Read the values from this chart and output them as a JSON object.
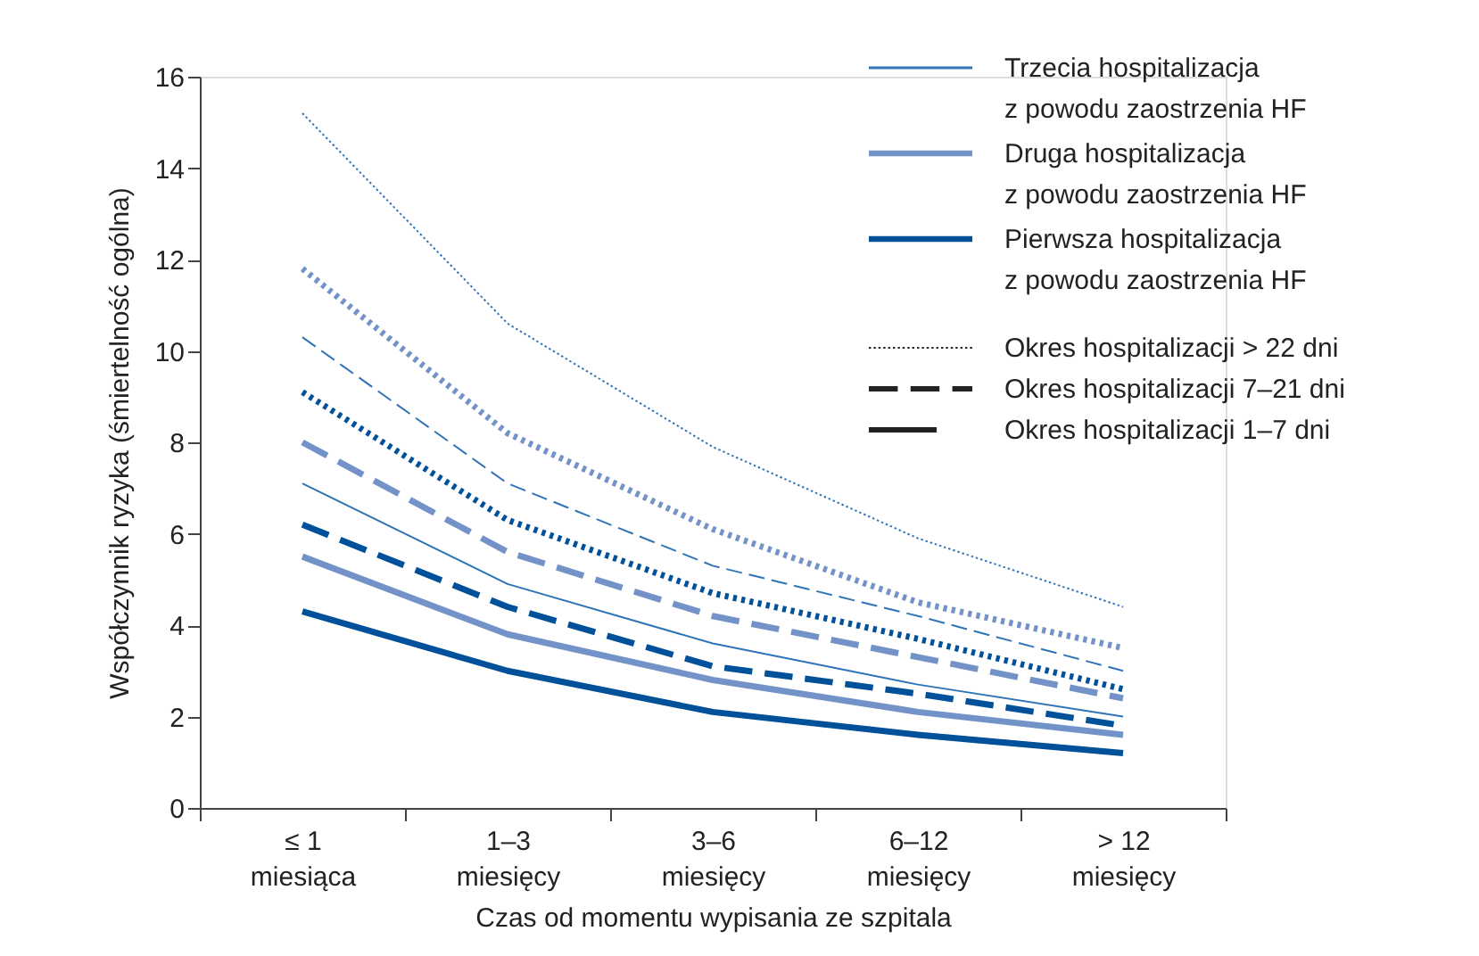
{
  "chart_data": {
    "type": "line",
    "xlabel": "Czas od momentu wypisania ze szpitala",
    "ylabel": "Współczynnik ryzyka (śmiertelność ogólna)",
    "categories": [
      "≤ 1\nmiesiąca",
      "1–3\nmiesięcy",
      "3–6\nmiesięcy",
      "6–12\nmiesięcy",
      "> 12\nmiesięcy"
    ],
    "ylim": [
      0,
      16
    ],
    "yticks": [
      0,
      2,
      4,
      6,
      8,
      10,
      12,
      14,
      16
    ],
    "grid": false,
    "legend": "top right",
    "series": [
      {
        "color": "#2f73b8",
        "line_style": "dotted",
        "values": [
          15.2,
          10.6,
          7.9,
          5.9,
          4.4
        ]
      },
      {
        "color": "#7393c8",
        "line_style": "dotted",
        "values": [
          11.8,
          8.2,
          6.1,
          4.5,
          3.5
        ]
      },
      {
        "color": "#2f73b8",
        "line_style": "dashed",
        "values": [
          10.3,
          7.1,
          5.3,
          4.2,
          3.0
        ]
      },
      {
        "color": "#00509a",
        "line_style": "dotted",
        "values": [
          9.1,
          6.3,
          4.7,
          3.7,
          2.6
        ]
      },
      {
        "color": "#7393c8",
        "line_style": "dashed",
        "values": [
          8.0,
          5.6,
          4.2,
          3.3,
          2.4
        ]
      },
      {
        "name": "Trzecia hospitalizacja\nz powodu zaostrzenia HF",
        "color": "#2f73b8",
        "line_style": "solid",
        "values": [
          7.1,
          4.9,
          3.6,
          2.7,
          2.0
        ]
      },
      {
        "color": "#00509a",
        "line_style": "dashed",
        "values": [
          6.2,
          4.4,
          3.1,
          2.5,
          1.8
        ]
      },
      {
        "name": "Druga hospitalizacja\nz powodu zaostrzenia HF",
        "color": "#7393c8",
        "line_style": "solid",
        "values": [
          5.5,
          3.8,
          2.8,
          2.1,
          1.6
        ]
      },
      {
        "name": "Pierwsza hospitalizacja\nz powodu zaostrzenia HF",
        "color": "#00509a",
        "line_style": "solid",
        "values": [
          4.3,
          3.0,
          2.1,
          1.6,
          1.2
        ]
      }
    ],
    "annotations": [
      "Okres hospitalizacji > 22 dni",
      "Okres hospitalizacji 7–21 dni",
      "Okres hospitalizacji 1–7 dni"
    ]
  }
}
